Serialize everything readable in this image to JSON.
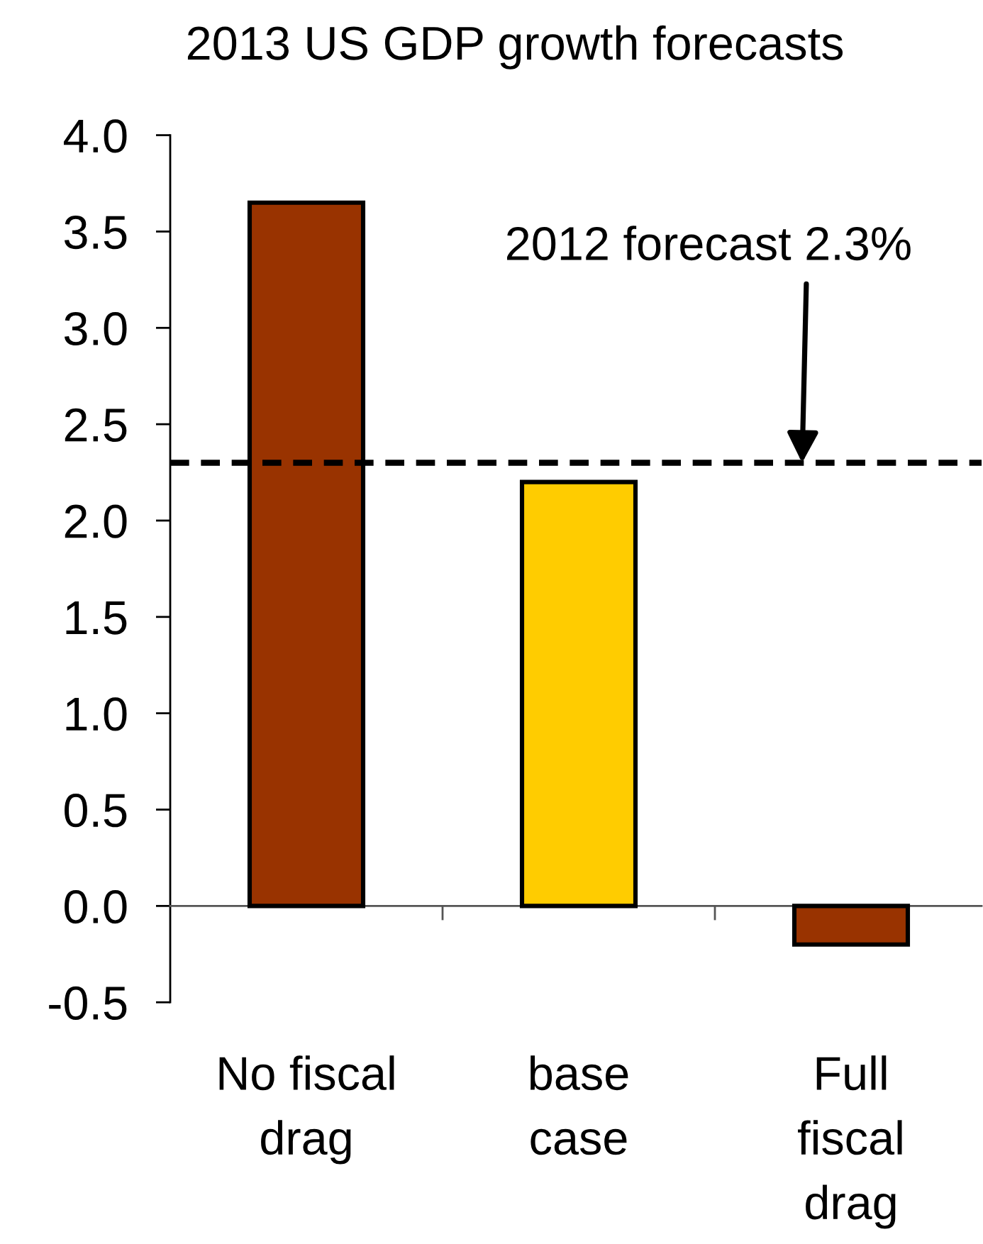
{
  "chart_data": {
    "type": "bar",
    "title": "2013 US GDP growth forecasts",
    "categories": [
      "No fiscal\ndrag",
      "base\ncase",
      "Full\nfiscal\ndrag"
    ],
    "values": [
      3.65,
      2.2,
      -0.2
    ],
    "colors": [
      "#993300",
      "#ffcc00",
      "#993300"
    ],
    "ylim": [
      -0.5,
      4.0
    ],
    "yticks": [
      -0.5,
      {
        "value": 0,
        "label": "0.0"
      },
      0.5,
      {
        "value": 1,
        "label": "1.0"
      },
      1.5,
      {
        "value": 2,
        "label": "2.0"
      },
      2.5,
      {
        "value": 3,
        "label": "3.0"
      },
      3.5,
      {
        "value": 4,
        "label": "4.0"
      }
    ],
    "ref_lines": [
      {
        "axis": "y",
        "value": 2.3,
        "label": "2012 forecast 2.3%",
        "line_style": "dashed",
        "color": "#000000"
      }
    ]
  }
}
